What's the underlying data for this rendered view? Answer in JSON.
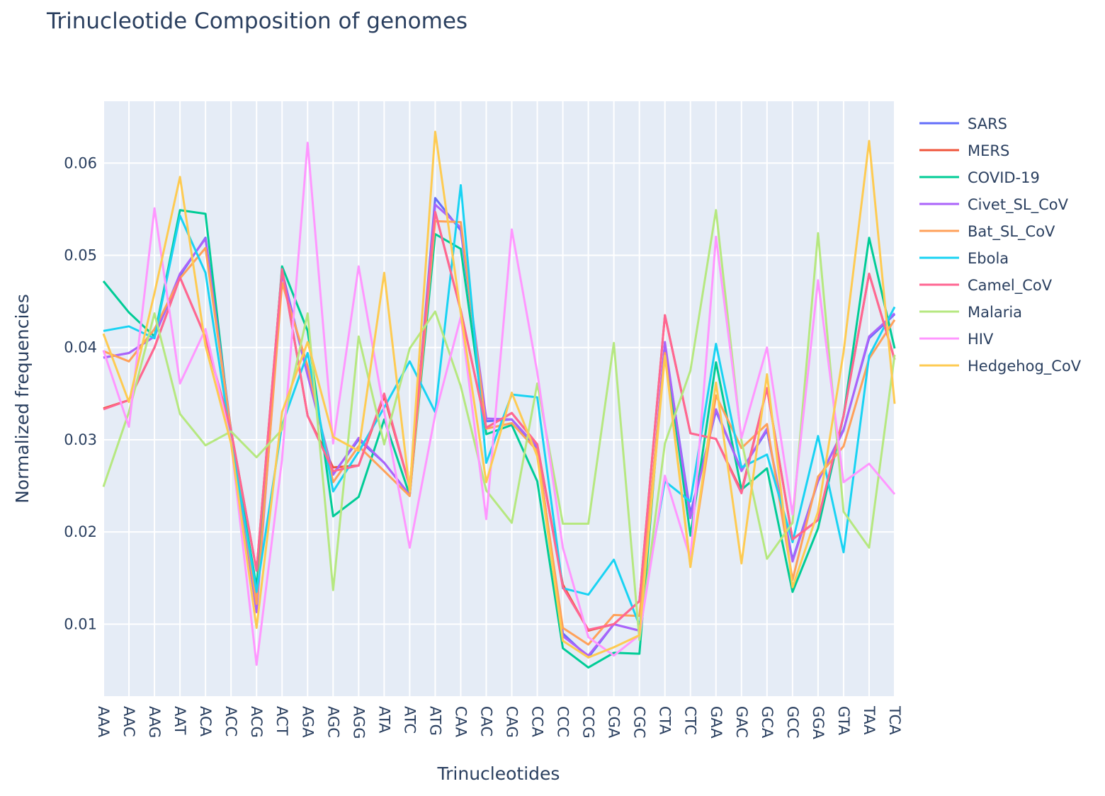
{
  "chart_data": {
    "type": "line",
    "title": "Trinucleotide Composition of genomes",
    "xlabel": "Trinucleotides",
    "ylabel": "Normalized frequencies",
    "ylim": [
      0.0022,
      0.0667
    ],
    "yticks": [
      0.01,
      0.02,
      0.03,
      0.04,
      0.05,
      0.06
    ],
    "ytick_labels": [
      "0.01",
      "0.02",
      "0.03",
      "0.04",
      "0.05",
      "0.06"
    ],
    "grid": true,
    "legend_position": "right",
    "background": "#E5ECF6",
    "categories": [
      "AAA",
      "AAC",
      "AAG",
      "AAT",
      "ACA",
      "ACC",
      "ACG",
      "ACT",
      "AGA",
      "AGC",
      "AGG",
      "ATA",
      "ATC",
      "ATG",
      "CAA",
      "CAC",
      "CAG",
      "CCA",
      "CCC",
      "CCG",
      "CGA",
      "CGC",
      "CTA",
      "CTC",
      "GAA",
      "GAC",
      "GCA",
      "GCC",
      "GGA",
      "GTA",
      "TAA",
      "TCA"
    ],
    "series": [
      {
        "name": "SARS",
        "color": "#636EFA",
        "values": [
          0.0389,
          0.0394,
          0.0412,
          0.0478,
          0.0519,
          0.0311,
          0.0131,
          0.0483,
          0.037,
          0.0263,
          0.03,
          0.0275,
          0.024,
          0.0562,
          0.0527,
          0.032,
          0.0322,
          0.029,
          0.009,
          0.0064,
          0.01,
          0.0093,
          0.0403,
          0.022,
          0.0331,
          0.0267,
          0.031,
          0.017,
          0.0255,
          0.0311,
          0.041,
          0.0436
        ]
      },
      {
        "name": "MERS",
        "color": "#EF553B",
        "values": [
          0.0334,
          0.0343,
          0.04,
          0.0476,
          0.0411,
          0.031,
          0.0158,
          0.0485,
          0.0326,
          0.027,
          0.0272,
          0.0347,
          0.0249,
          0.0547,
          0.044,
          0.0313,
          0.0329,
          0.0295,
          0.0143,
          0.0093,
          0.01,
          0.0125,
          0.0435,
          0.0307,
          0.0301,
          0.0244,
          0.0356,
          0.0192,
          0.0213,
          0.0326,
          0.048,
          0.0387
        ]
      },
      {
        "name": "COVID-19",
        "color": "#00CC96",
        "values": [
          0.0472,
          0.0438,
          0.0412,
          0.0549,
          0.0545,
          0.0303,
          0.014,
          0.0488,
          0.0418,
          0.0217,
          0.0238,
          0.0322,
          0.024,
          0.0523,
          0.0507,
          0.0306,
          0.0316,
          0.0255,
          0.0074,
          0.0053,
          0.0069,
          0.0068,
          0.0404,
          0.0196,
          0.0384,
          0.0246,
          0.0269,
          0.0135,
          0.0204,
          0.0326,
          0.0519,
          0.0399
        ]
      },
      {
        "name": "Civet_SL_CoV",
        "color": "#AB63FA",
        "values": [
          0.0389,
          0.0394,
          0.0412,
          0.048,
          0.0518,
          0.0309,
          0.0113,
          0.048,
          0.037,
          0.0262,
          0.0302,
          0.0275,
          0.024,
          0.0555,
          0.053,
          0.0323,
          0.0322,
          0.0292,
          0.0087,
          0.0066,
          0.01,
          0.0093,
          0.0406,
          0.0215,
          0.0333,
          0.0266,
          0.0312,
          0.0168,
          0.0255,
          0.031,
          0.0412,
          0.0437
        ]
      },
      {
        "name": "Bat_SL_CoV",
        "color": "#FFA15A",
        "values": [
          0.0396,
          0.0385,
          0.042,
          0.0475,
          0.0508,
          0.031,
          0.0122,
          0.047,
          0.038,
          0.0254,
          0.0293,
          0.0266,
          0.0239,
          0.0537,
          0.0536,
          0.0312,
          0.0318,
          0.0288,
          0.0096,
          0.0078,
          0.011,
          0.0109,
          0.0394,
          0.0163,
          0.0348,
          0.0291,
          0.0317,
          0.0148,
          0.026,
          0.0293,
          0.0388,
          0.043
        ]
      },
      {
        "name": "Ebola",
        "color": "#19D3F3",
        "values": [
          0.0418,
          0.0423,
          0.041,
          0.0543,
          0.0481,
          0.0299,
          0.0135,
          0.0316,
          0.0394,
          0.0244,
          0.0287,
          0.0335,
          0.0385,
          0.033,
          0.0576,
          0.0275,
          0.0349,
          0.0346,
          0.0139,
          0.0132,
          0.017,
          0.0099,
          0.0255,
          0.0233,
          0.0404,
          0.027,
          0.0284,
          0.0189,
          0.0304,
          0.0178,
          0.0391,
          0.0444
        ]
      },
      {
        "name": "Camel_CoV",
        "color": "#FF6692",
        "values": [
          0.0333,
          0.0343,
          0.04,
          0.0476,
          0.0411,
          0.031,
          0.0158,
          0.0485,
          0.0326,
          0.0266,
          0.0272,
          0.035,
          0.0249,
          0.0547,
          0.044,
          0.0313,
          0.0329,
          0.0295,
          0.014,
          0.0094,
          0.01,
          0.0125,
          0.0435,
          0.0307,
          0.0301,
          0.0242,
          0.0356,
          0.0192,
          0.0213,
          0.0326,
          0.048,
          0.0387
        ]
      },
      {
        "name": "Malaria",
        "color": "#B6E880",
        "values": [
          0.0249,
          0.033,
          0.0437,
          0.0328,
          0.0294,
          0.0309,
          0.0281,
          0.0311,
          0.0437,
          0.0137,
          0.0412,
          0.0295,
          0.0399,
          0.0439,
          0.0358,
          0.0245,
          0.021,
          0.0361,
          0.0209,
          0.0209,
          0.0405,
          0.0083,
          0.0296,
          0.0375,
          0.0549,
          0.0299,
          0.0171,
          0.021,
          0.0524,
          0.0222,
          0.0183,
          0.0392
        ]
      },
      {
        "name": "HIV",
        "color": "#FF97FF",
        "values": [
          0.0397,
          0.0314,
          0.0551,
          0.0361,
          0.042,
          0.0297,
          0.0056,
          0.0279,
          0.0622,
          0.0296,
          0.0488,
          0.033,
          0.0183,
          0.0327,
          0.0433,
          0.0214,
          0.0528,
          0.0373,
          0.0183,
          0.0086,
          0.0066,
          0.0088,
          0.0261,
          0.0171,
          0.052,
          0.0302,
          0.04,
          0.0219,
          0.0473,
          0.0254,
          0.0274,
          0.0241
        ]
      },
      {
        "name": "Hedgehog_CoV",
        "color": "#FECB52",
        "values": [
          0.0415,
          0.0341,
          0.0459,
          0.0585,
          0.0402,
          0.0296,
          0.0096,
          0.033,
          0.0406,
          0.0303,
          0.0288,
          0.0481,
          0.0244,
          0.0634,
          0.0437,
          0.0254,
          0.0351,
          0.0282,
          0.0082,
          0.0064,
          0.0075,
          0.0088,
          0.0391,
          0.0162,
          0.0362,
          0.0166,
          0.0371,
          0.014,
          0.0222,
          0.0395,
          0.0624,
          0.0339
        ]
      }
    ]
  }
}
